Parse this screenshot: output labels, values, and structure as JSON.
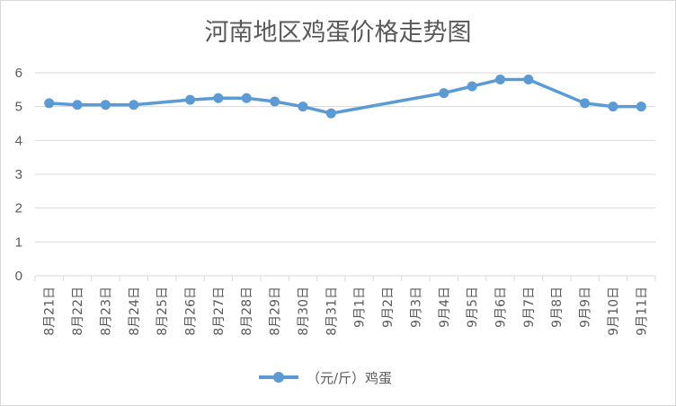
{
  "chart_data": {
    "type": "line",
    "title": "河南地区鸡蛋价格走势图",
    "xlabel": "",
    "ylabel": "",
    "ylim": [
      0,
      6
    ],
    "yticks": [
      0,
      1,
      2,
      3,
      4,
      5,
      6
    ],
    "grid": true,
    "legend_position": "bottom",
    "categories": [
      "8月21日",
      "8月22日",
      "8月23日",
      "8月24日",
      "8月25日",
      "8月26日",
      "8月27日",
      "8月28日",
      "8月29日",
      "8月30日",
      "8月31日",
      "9月1日",
      "9月2日",
      "9月3日",
      "9月4日",
      "9月5日",
      "9月6日",
      "9月7日",
      "9月8日",
      "9月9日",
      "9月10日",
      "9月11日"
    ],
    "series": [
      {
        "name": "（元/斤）鸡蛋",
        "color": "#5b9bd5",
        "values": [
          5.1,
          5.05,
          5.05,
          5.05,
          null,
          5.2,
          5.25,
          5.25,
          5.15,
          5.0,
          4.8,
          null,
          null,
          null,
          5.4,
          5.6,
          5.8,
          5.8,
          null,
          5.1,
          5.0,
          5.0
        ]
      }
    ],
    "colors": {
      "grid": "#d9d9d9",
      "axis": "#d9d9d9",
      "text": "#595959"
    }
  }
}
